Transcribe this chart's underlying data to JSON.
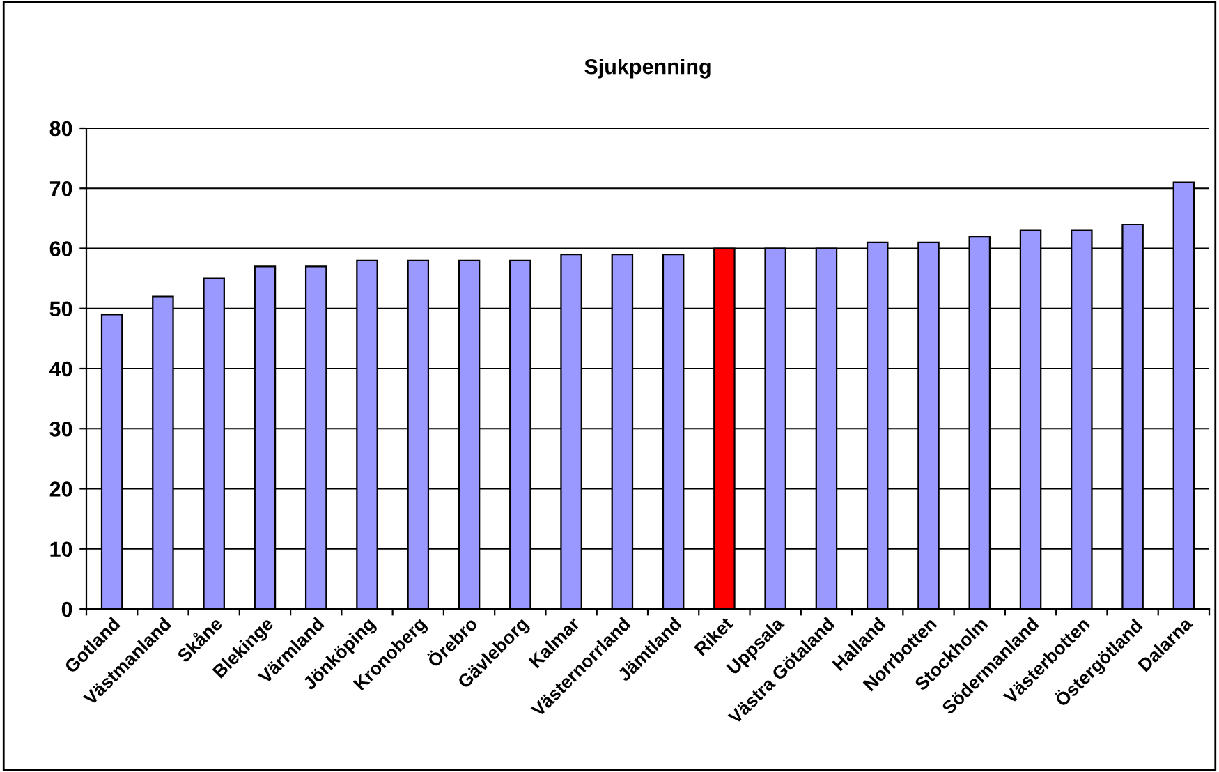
{
  "chart_data": {
    "type": "bar",
    "title": "Sjukpenning",
    "categories": [
      "Gotland",
      "Västmanland",
      "Skåne",
      "Blekinge",
      "Värmland",
      "Jönköping",
      "Kronoberg",
      "Örebro",
      "Gävleborg",
      "Kalmar",
      "Västernorrland",
      "Jämtland",
      "Riket",
      "Uppsala",
      "Västra Götaland",
      "Halland",
      "Norrbotten",
      "Stockholm",
      "Södermanland",
      "Västerbotten",
      "Östergötland",
      "Dalarna"
    ],
    "values": [
      49,
      52,
      55,
      57,
      57,
      58,
      58,
      58,
      58,
      59,
      59,
      59,
      60,
      60,
      60,
      61,
      61,
      62,
      63,
      63,
      64,
      71
    ],
    "colors": [
      "#9999ff",
      "#9999ff",
      "#9999ff",
      "#9999ff",
      "#9999ff",
      "#9999ff",
      "#9999ff",
      "#9999ff",
      "#9999ff",
      "#9999ff",
      "#9999ff",
      "#9999ff",
      "#ff0000",
      "#9999ff",
      "#9999ff",
      "#9999ff",
      "#9999ff",
      "#9999ff",
      "#9999ff",
      "#9999ff",
      "#9999ff",
      "#9999ff"
    ],
    "ylim": [
      0,
      80
    ],
    "yticks": [
      0,
      10,
      20,
      30,
      40,
      50,
      60,
      70,
      80
    ],
    "grid": "y",
    "legend": false
  }
}
